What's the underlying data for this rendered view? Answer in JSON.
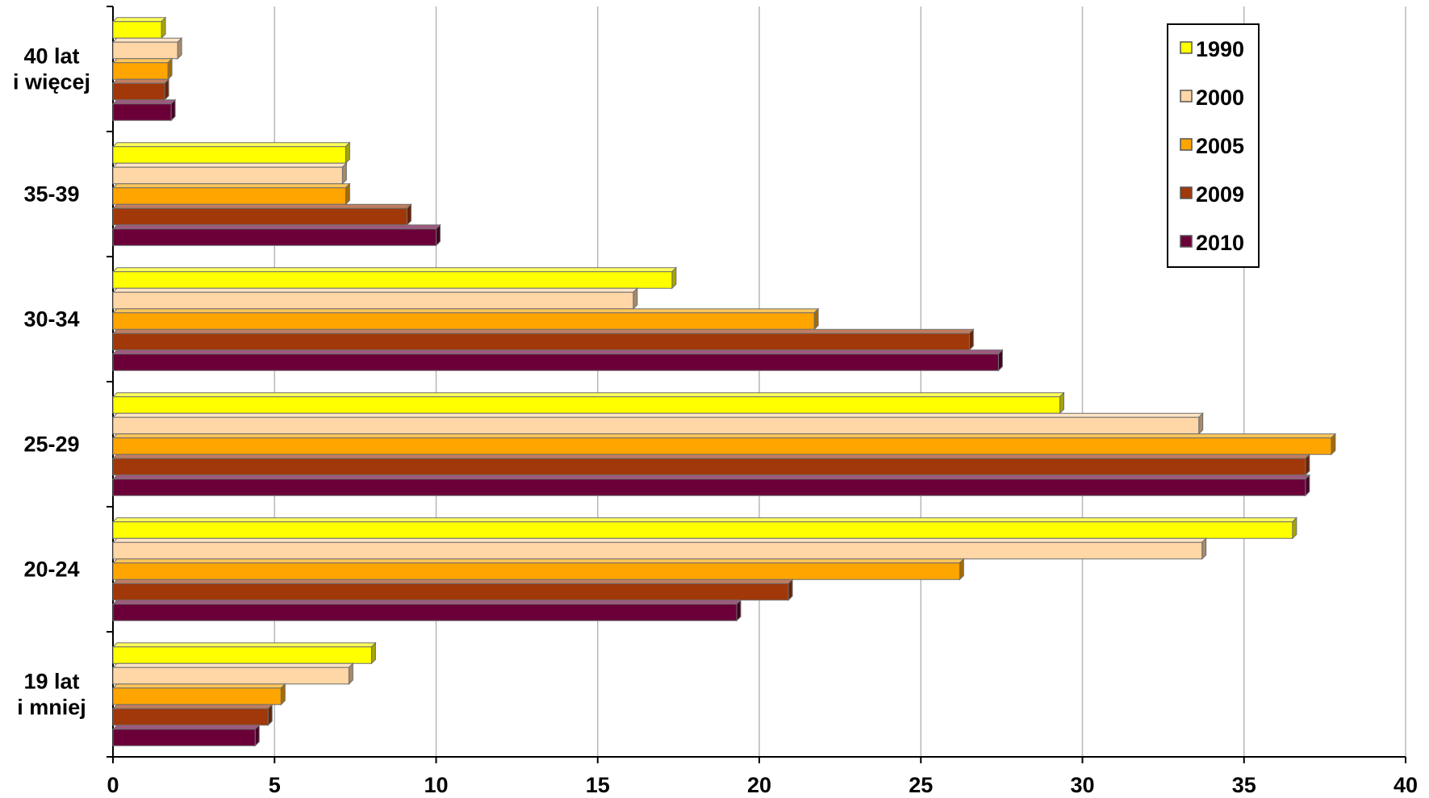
{
  "chart_data": {
    "type": "bar",
    "orientation": "horizontal",
    "title": "",
    "xlabel": "",
    "ylabel": "",
    "xlim": [
      0,
      40
    ],
    "x_ticks": [
      0,
      5,
      10,
      15,
      20,
      25,
      30,
      35,
      40
    ],
    "categories_top_to_bottom": [
      "40 lat\ni więcej",
      "35-39",
      "30-34",
      "25-29",
      "20-24",
      "19 lat\ni mniej"
    ],
    "grid": "vertical",
    "legend_placement": "top-right",
    "series": [
      {
        "name": "1990",
        "color": "#FFFF00",
        "values": [
          1.5,
          7.2,
          17.3,
          29.3,
          36.5,
          8.0
        ]
      },
      {
        "name": "2000",
        "color": "#FFD6A5",
        "values": [
          2.0,
          7.1,
          16.1,
          33.6,
          33.7,
          7.3
        ]
      },
      {
        "name": "2005",
        "color": "#FFA500",
        "values": [
          1.7,
          7.2,
          21.7,
          37.7,
          26.2,
          5.2
        ]
      },
      {
        "name": "2009",
        "color": "#A0380A",
        "values": [
          1.6,
          9.1,
          26.5,
          36.9,
          20.9,
          4.8
        ]
      },
      {
        "name": "2010",
        "color": "#6B0038",
        "values": [
          1.8,
          10.0,
          27.4,
          36.9,
          19.3,
          4.4
        ]
      }
    ]
  }
}
